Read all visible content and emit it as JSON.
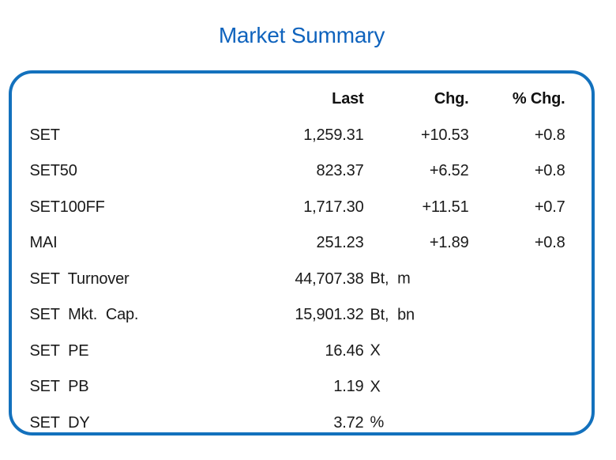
{
  "title": "Market Summary",
  "colors": {
    "title_blue": "#0f63bd",
    "border_blue": "#1371bd",
    "text": "#1a1a1a"
  },
  "table": {
    "headers": {
      "last": "Last",
      "chg": "Chg.",
      "pchg": "% Chg."
    },
    "rows": [
      {
        "label": "SET",
        "last": "1,259.31",
        "unit": "",
        "chg": "+10.53",
        "pchg": "+0.8"
      },
      {
        "label": "SET50",
        "last": "823.37",
        "unit": "",
        "chg": "+6.52",
        "pchg": "+0.8"
      },
      {
        "label": "SET100FF",
        "last": "1,717.30",
        "unit": "",
        "chg": "+11.51",
        "pchg": "+0.7"
      },
      {
        "label": "MAI",
        "last": "251.23",
        "unit": "",
        "chg": "+1.89",
        "pchg": "+0.8"
      },
      {
        "label": "SET  Turnover",
        "last": "44,707.38",
        "unit": "Bt,  m",
        "chg": "",
        "pchg": ""
      },
      {
        "label": "SET  Mkt.  Cap.",
        "last": "15,901.32",
        "unit": "Bt,  bn",
        "chg": "",
        "pchg": ""
      },
      {
        "label": "SET  PE",
        "last": "16.46",
        "unit": "X",
        "chg": "",
        "pchg": ""
      },
      {
        "label": "SET  PB",
        "last": "1.19",
        "unit": "X",
        "chg": "",
        "pchg": ""
      },
      {
        "label": "SET  DY",
        "last": "3.72",
        "unit": "%",
        "chg": "",
        "pchg": ""
      }
    ]
  },
  "chart_data": {
    "type": "table",
    "title": "Market Summary",
    "columns": [
      "",
      "Last",
      "Chg.",
      "% Chg."
    ],
    "rows": [
      [
        "SET",
        "1,259.31",
        "+10.53",
        "+0.8"
      ],
      [
        "SET50",
        "823.37",
        "+6.52",
        "+0.8"
      ],
      [
        "SET100FF",
        "1,717.30",
        "+11.51",
        "+0.7"
      ],
      [
        "MAI",
        "251.23",
        "+1.89",
        "+0.8"
      ],
      [
        "SET Turnover",
        "44,707.38 Bt, m",
        "",
        ""
      ],
      [
        "SET Mkt. Cap.",
        "15,901.32 Bt, bn",
        "",
        ""
      ],
      [
        "SET PE",
        "16.46 X",
        "",
        ""
      ],
      [
        "SET PB",
        "1.19 X",
        "",
        ""
      ],
      [
        "SET DY",
        "3.72 %",
        "",
        ""
      ]
    ]
  }
}
